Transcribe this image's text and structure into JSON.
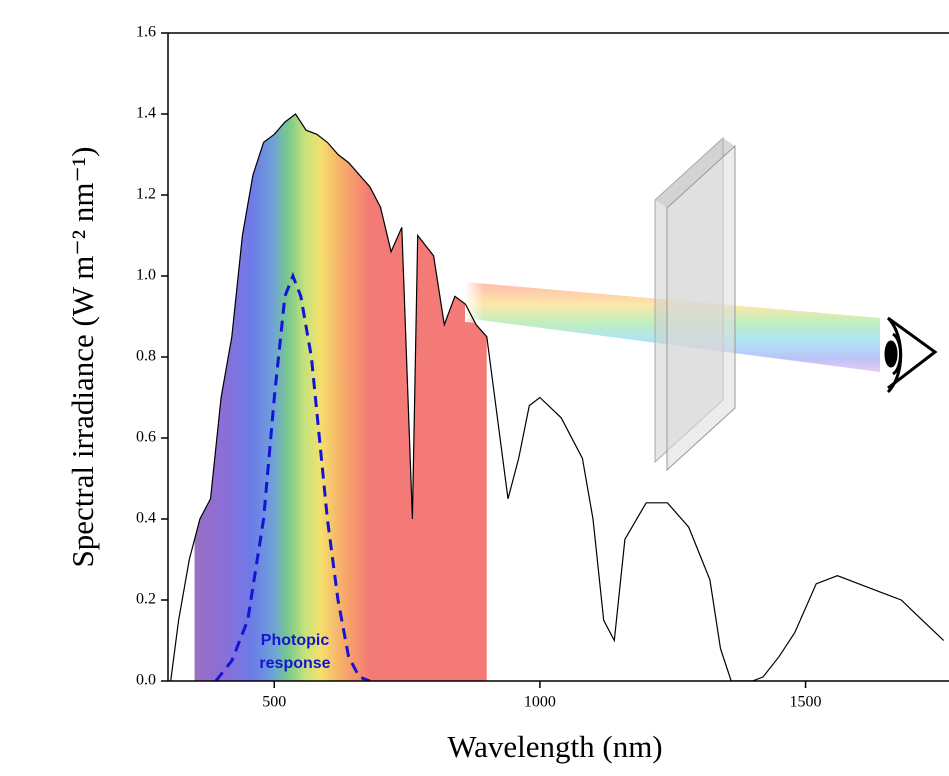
{
  "chart_data": {
    "type": "line",
    "x_label": "Wavelength (nm)",
    "y_label": "Spectral irradiance (W m⁻² nm⁻¹)",
    "xlim": [
      300,
      1770
    ],
    "ylim": [
      0,
      1.6
    ],
    "xticks": [
      500,
      1000,
      1500
    ],
    "yticks": [
      {
        "value": 0,
        "label": "0.0"
      },
      {
        "value": 0.2,
        "label": "0.2"
      },
      {
        "value": 0.4,
        "label": "0.4"
      },
      {
        "value": 0.6,
        "label": "0.6"
      },
      {
        "value": 0.8,
        "label": "0.8"
      },
      {
        "value": 1.0,
        "label": "1.0"
      },
      {
        "value": 1.2,
        "label": "1.2"
      },
      {
        "value": 1.4,
        "label": "1.4"
      },
      {
        "value": 1.6,
        "label": "1.6"
      }
    ],
    "shaded_range": [
      350,
      900
    ],
    "spectrum": {
      "color": "#000000",
      "x": [
        305,
        320,
        340,
        360,
        380,
        400,
        420,
        440,
        460,
        480,
        500,
        520,
        540,
        560,
        580,
        600,
        620,
        640,
        660,
        680,
        700,
        720,
        740,
        760,
        770,
        800,
        820,
        840,
        860,
        880,
        900,
        920,
        940,
        960,
        980,
        1000,
        1040,
        1080,
        1100,
        1120,
        1140,
        1160,
        1200,
        1240,
        1280,
        1320,
        1340,
        1360,
        1400,
        1420,
        1450,
        1480,
        1520,
        1560,
        1600,
        1640,
        1680,
        1720,
        1760
      ],
      "values": [
        0.0,
        0.15,
        0.3,
        0.4,
        0.45,
        0.7,
        0.85,
        1.1,
        1.25,
        1.33,
        1.35,
        1.38,
        1.4,
        1.36,
        1.35,
        1.33,
        1.3,
        1.28,
        1.25,
        1.22,
        1.17,
        1.06,
        1.12,
        0.4,
        1.1,
        1.05,
        0.88,
        0.95,
        0.93,
        0.88,
        0.85,
        0.65,
        0.45,
        0.55,
        0.68,
        0.7,
        0.65,
        0.55,
        0.4,
        0.15,
        0.1,
        0.35,
        0.44,
        0.44,
        0.38,
        0.25,
        0.08,
        0.0,
        0.0,
        0.01,
        0.06,
        0.12,
        0.24,
        0.26,
        0.24,
        0.22,
        0.2,
        0.15,
        0.1
      ]
    },
    "photopic": {
      "color": "#1414d2",
      "label_lines": [
        "Photopic",
        "response"
      ],
      "x": [
        390,
        420,
        450,
        480,
        500,
        520,
        535,
        550,
        570,
        600,
        620,
        640,
        660,
        680
      ],
      "values": [
        0,
        0.05,
        0.15,
        0.4,
        0.7,
        0.95,
        1.0,
        0.95,
        0.8,
        0.4,
        0.2,
        0.06,
        0.01,
        0
      ]
    }
  }
}
